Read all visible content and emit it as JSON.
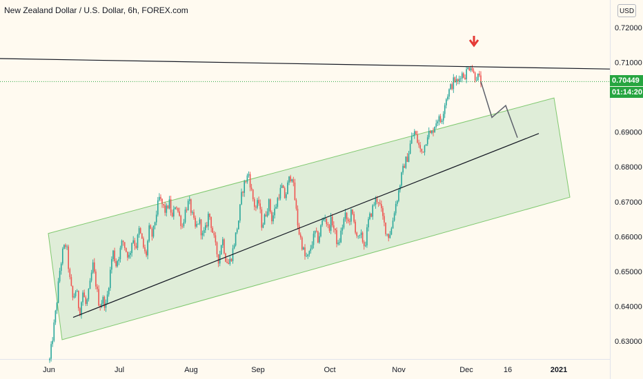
{
  "chart_data": {
    "type": "candlestick",
    "title": "New Zealand Dollar / U.S. Dollar, 6h, FOREX.com",
    "currency": "USD",
    "x_ticks": [
      "Jun",
      "Jul",
      "Aug",
      "Sep",
      "Oct",
      "Nov",
      "Dec",
      "16",
      "2021"
    ],
    "y_ticks": [
      "0.72000",
      "0.71000",
      "0.69000",
      "0.68000",
      "0.67000",
      "0.66000",
      "0.65000",
      "0.64000",
      "0.63000"
    ],
    "ylim": [
      0.6235,
      0.7235
    ],
    "current_price": "0.70449",
    "countdown": "01:14:20",
    "colors": {
      "up": "#26a69a",
      "down": "#ef5350",
      "channel_fill": "#d9ead3",
      "channel_stroke": "#7ec86e",
      "price_tag": "#26a540",
      "arrow": "#e53935"
    },
    "price_path": [
      [
        0,
        0.6245
      ],
      [
        1,
        0.632
      ],
      [
        2,
        0.64
      ],
      [
        3,
        0.65
      ],
      [
        4,
        0.656
      ],
      [
        5,
        0.658
      ],
      [
        6,
        0.648
      ],
      [
        7,
        0.642
      ],
      [
        8,
        0.645
      ],
      [
        9,
        0.638
      ],
      [
        10,
        0.644
      ],
      [
        11,
        0.64
      ],
      [
        12,
        0.645
      ],
      [
        13,
        0.652
      ],
      [
        14,
        0.646
      ],
      [
        15,
        0.64
      ],
      [
        16,
        0.642
      ],
      [
        17,
        0.64
      ],
      [
        18,
        0.648
      ],
      [
        19,
        0.656
      ],
      [
        20,
        0.652
      ],
      [
        21,
        0.655
      ],
      [
        22,
        0.659
      ],
      [
        23,
        0.656
      ],
      [
        24,
        0.654
      ],
      [
        25,
        0.66
      ],
      [
        26,
        0.657
      ],
      [
        27,
        0.662
      ],
      [
        28,
        0.658
      ],
      [
        29,
        0.654
      ],
      [
        30,
        0.662
      ],
      [
        31,
        0.66
      ],
      [
        32,
        0.666
      ],
      [
        33,
        0.671
      ],
      [
        34,
        0.669
      ],
      [
        35,
        0.667
      ],
      [
        36,
        0.67
      ],
      [
        37,
        0.665
      ],
      [
        38,
        0.67
      ],
      [
        39,
        0.666
      ],
      [
        40,
        0.663
      ],
      [
        41,
        0.668
      ],
      [
        42,
        0.67
      ],
      [
        43,
        0.666
      ],
      [
        44,
        0.662
      ],
      [
        45,
        0.665
      ],
      [
        46,
        0.66
      ],
      [
        47,
        0.662
      ],
      [
        48,
        0.667
      ],
      [
        49,
        0.662
      ],
      [
        50,
        0.657
      ],
      [
        51,
        0.653
      ],
      [
        52,
        0.66
      ],
      [
        53,
        0.654
      ],
      [
        54,
        0.652
      ],
      [
        55,
        0.655
      ],
      [
        56,
        0.66
      ],
      [
        57,
        0.665
      ],
      [
        58,
        0.673
      ],
      [
        59,
        0.676
      ],
      [
        60,
        0.678
      ],
      [
        61,
        0.672
      ],
      [
        62,
        0.668
      ],
      [
        63,
        0.67
      ],
      [
        64,
        0.663
      ],
      [
        65,
        0.666
      ],
      [
        66,
        0.67
      ],
      [
        67,
        0.665
      ],
      [
        68,
        0.668
      ],
      [
        69,
        0.672
      ],
      [
        70,
        0.674
      ],
      [
        71,
        0.671
      ],
      [
        72,
        0.676
      ],
      [
        73,
        0.678
      ],
      [
        74,
        0.67
      ],
      [
        75,
        0.662
      ],
      [
        76,
        0.658
      ],
      [
        77,
        0.654
      ],
      [
        78,
        0.654
      ],
      [
        79,
        0.658
      ],
      [
        80,
        0.661
      ],
      [
        81,
        0.659
      ],
      [
        82,
        0.664
      ],
      [
        83,
        0.666
      ],
      [
        84,
        0.662
      ],
      [
        85,
        0.665
      ],
      [
        86,
        0.661
      ],
      [
        87,
        0.657
      ],
      [
        88,
        0.662
      ],
      [
        89,
        0.666
      ],
      [
        90,
        0.664
      ],
      [
        91,
        0.667
      ],
      [
        92,
        0.663
      ],
      [
        93,
        0.659
      ],
      [
        94,
        0.66
      ],
      [
        95,
        0.657
      ],
      [
        96,
        0.664
      ],
      [
        97,
        0.667
      ],
      [
        98,
        0.67
      ],
      [
        99,
        0.671
      ],
      [
        100,
        0.667
      ],
      [
        101,
        0.663
      ],
      [
        102,
        0.66
      ],
      [
        103,
        0.662
      ],
      [
        104,
        0.668
      ],
      [
        105,
        0.672
      ],
      [
        106,
        0.677
      ],
      [
        107,
        0.681
      ],
      [
        108,
        0.683
      ],
      [
        109,
        0.688
      ],
      [
        110,
        0.69
      ],
      [
        111,
        0.687
      ],
      [
        112,
        0.684
      ],
      [
        113,
        0.686
      ],
      [
        114,
        0.69
      ],
      [
        115,
        0.689
      ],
      [
        116,
        0.692
      ],
      [
        117,
        0.694
      ],
      [
        118,
        0.693
      ],
      [
        119,
        0.698
      ],
      [
        120,
        0.701
      ],
      [
        121,
        0.703
      ],
      [
        122,
        0.705
      ],
      [
        123,
        0.704
      ],
      [
        124,
        0.707
      ],
      [
        125,
        0.706
      ],
      [
        126,
        0.708
      ],
      [
        127,
        0.7095
      ],
      [
        128,
        0.706
      ],
      [
        129,
        0.706
      ],
      [
        130,
        0.7045
      ]
    ],
    "channel": [
      [
        0.0,
        0.6609
      ],
      [
        0.1,
        0.6304
      ],
      [
        0.9,
        0.6713
      ],
      [
        0.8,
        0.6998
      ]
    ],
    "channel_midline": [
      [
        0.0,
        0.6368
      ],
      [
        0.9,
        0.6896
      ]
    ],
    "resistance_line": [
      [
        0.0,
        0.7111
      ],
      [
        1.0,
        0.7081
      ]
    ],
    "projection_path": [
      [
        0.0,
        0.7045
      ],
      [
        0.2,
        0.6942
      ],
      [
        0.5,
        0.6976
      ],
      [
        0.8,
        0.6884
      ]
    ]
  }
}
